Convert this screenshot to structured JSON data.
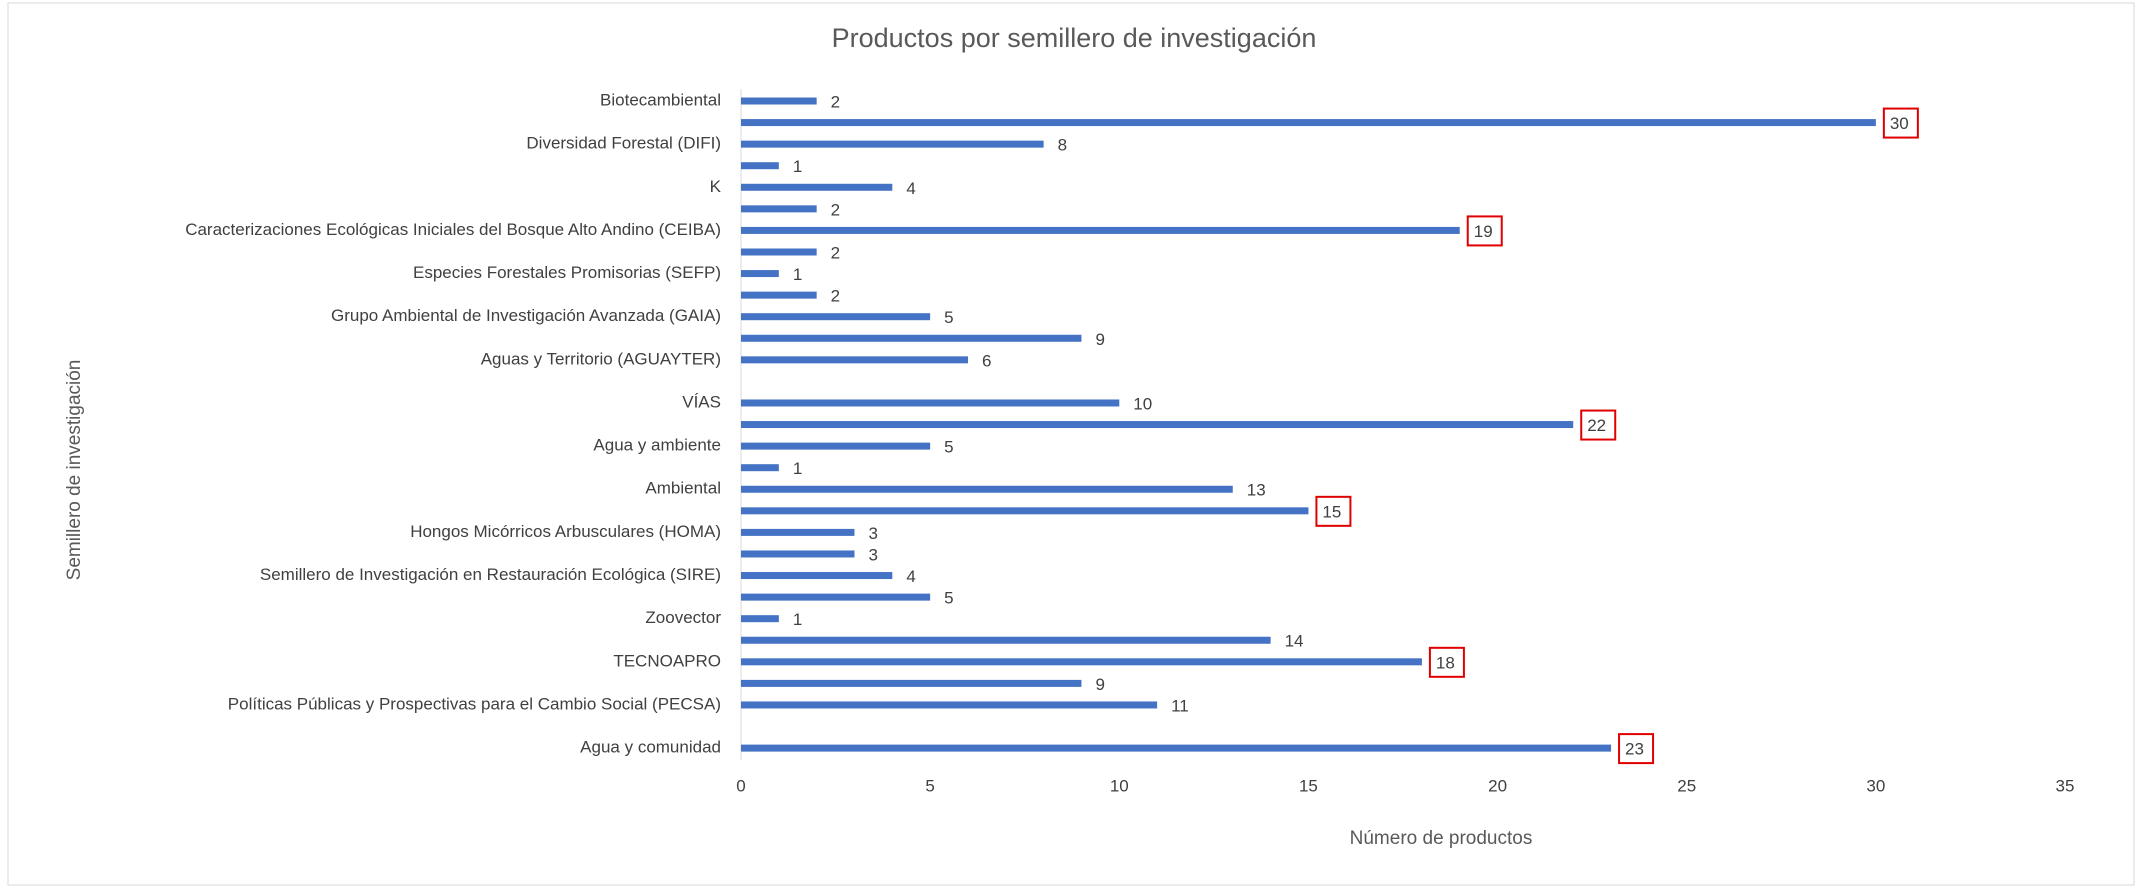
{
  "chart_data": {
    "type": "barh",
    "title": "Productos por semillero de investigación",
    "xlabel": "Número de productos",
    "ylabel": "Semillero de investigación",
    "categories": [
      "Biotecambiental",
      null,
      "Diversidad Forestal (DIFI)",
      null,
      "K",
      null,
      "Caracterizaciones Ecológicas Iniciales del Bosque Alto Andino (CEIBA)",
      null,
      "Especies Forestales Promisorias (SEFP)",
      null,
      "Grupo Ambiental de Investigación Avanzada (GAIA)",
      null,
      "Aguas y Territorio (AGUAYTER)",
      null,
      "VÍAS",
      null,
      "Agua y ambiente",
      null,
      "Ambiental",
      null,
      "Hongos Micórricos Arbusculares (HOMA)",
      null,
      "Semillero de Investigación en Restauración Ecológica (SIRE)",
      null,
      "Zoovector",
      null,
      "TECNOAPRO",
      null,
      "Políticas Públicas  y Prospectivas para el Cambio Social (PECSA)",
      null,
      "Agua y comunidad"
    ],
    "values": [
      2,
      30,
      8,
      1,
      4,
      2,
      19,
      2,
      1,
      2,
      5,
      9,
      6,
      null,
      10,
      22,
      5,
      1,
      13,
      15,
      3,
      3,
      4,
      5,
      1,
      14,
      18,
      9,
      11,
      null,
      23
    ],
    "value_label_box": [
      false,
      true,
      false,
      false,
      false,
      false,
      true,
      false,
      false,
      false,
      false,
      false,
      false,
      false,
      false,
      true,
      false,
      false,
      false,
      true,
      false,
      false,
      false,
      false,
      false,
      false,
      true,
      false,
      false,
      false,
      true
    ],
    "box_color": "#e00000",
    "color": "#4472c4",
    "xlim": [
      0,
      35
    ],
    "xticks": [
      0,
      5,
      10,
      15,
      20,
      25,
      30,
      35
    ]
  }
}
